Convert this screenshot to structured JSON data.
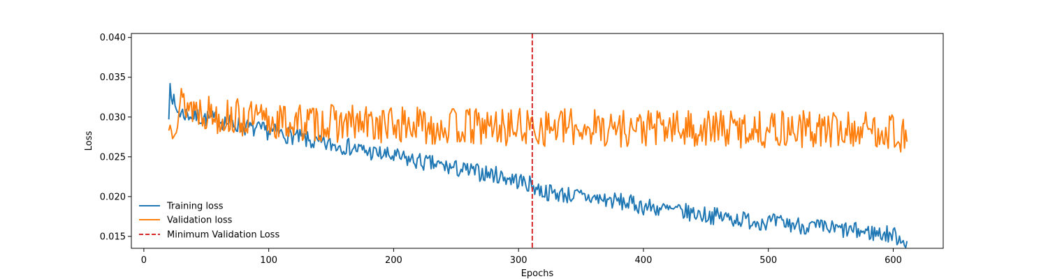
{
  "chart_data": {
    "type": "line",
    "title": "",
    "xlabel": "Epochs",
    "ylabel": "Loss",
    "xlim": [
      -10,
      640
    ],
    "ylim": [
      0.0135,
      0.0405
    ],
    "xticks": [
      0,
      100,
      200,
      300,
      400,
      500,
      600
    ],
    "yticks": [
      0.015,
      0.02,
      0.025,
      0.03,
      0.035,
      0.04
    ],
    "ytick_labels": [
      "0.015",
      "0.020",
      "0.025",
      "0.030",
      "0.035",
      "0.040"
    ],
    "grid": false,
    "legend_position": "lower-left",
    "x_start": 20,
    "x_end": 611,
    "series": [
      {
        "name": "Training loss",
        "color": "#1f77b4",
        "style": "solid",
        "anchors": [
          [
            20,
            0.0297
          ],
          [
            21,
            0.0342
          ],
          [
            25,
            0.031
          ],
          [
            30,
            0.0305
          ],
          [
            40,
            0.0302
          ],
          [
            50,
            0.0298
          ],
          [
            60,
            0.0296
          ],
          [
            70,
            0.0292
          ],
          [
            80,
            0.0288
          ],
          [
            90,
            0.0284
          ],
          [
            100,
            0.0282
          ],
          [
            120,
            0.0276
          ],
          [
            140,
            0.0266
          ],
          [
            160,
            0.0264
          ],
          [
            180,
            0.0256
          ],
          [
            200,
            0.025
          ],
          [
            220,
            0.0244
          ],
          [
            240,
            0.0238
          ],
          [
            260,
            0.0232
          ],
          [
            280,
            0.0228
          ],
          [
            300,
            0.022
          ],
          [
            311,
            0.0214
          ],
          [
            320,
            0.0206
          ],
          [
            340,
            0.0202
          ],
          [
            360,
            0.0198
          ],
          [
            380,
            0.0194
          ],
          [
            400,
            0.0188
          ],
          [
            420,
            0.0183
          ],
          [
            440,
            0.0179
          ],
          [
            460,
            0.0175
          ],
          [
            480,
            0.0171
          ],
          [
            500,
            0.0168
          ],
          [
            520,
            0.0165
          ],
          [
            540,
            0.0161
          ],
          [
            560,
            0.0158
          ],
          [
            580,
            0.0155
          ],
          [
            600,
            0.0152
          ],
          [
            611,
            0.0144
          ]
        ],
        "noise": 0.0011,
        "seed": 7
      },
      {
        "name": "Validation loss",
        "color": "#ff7f0e",
        "style": "solid",
        "anchors": [
          [
            20,
            0.0283
          ],
          [
            30,
            0.0318
          ],
          [
            40,
            0.0312
          ],
          [
            60,
            0.0302
          ],
          [
            80,
            0.0298
          ],
          [
            100,
            0.0294
          ],
          [
            150,
            0.0292
          ],
          [
            200,
            0.029
          ],
          [
            250,
            0.0288
          ],
          [
            300,
            0.0287
          ],
          [
            350,
            0.0287
          ],
          [
            400,
            0.0286
          ],
          [
            450,
            0.0285
          ],
          [
            500,
            0.0285
          ],
          [
            550,
            0.0284
          ],
          [
            600,
            0.0284
          ],
          [
            611,
            0.0269
          ]
        ],
        "noise": 0.0024,
        "seed": 13
      }
    ],
    "vline": {
      "name": "Minimum Validation Loss",
      "x": 311,
      "color": "#d62728",
      "style": "dashed"
    }
  }
}
